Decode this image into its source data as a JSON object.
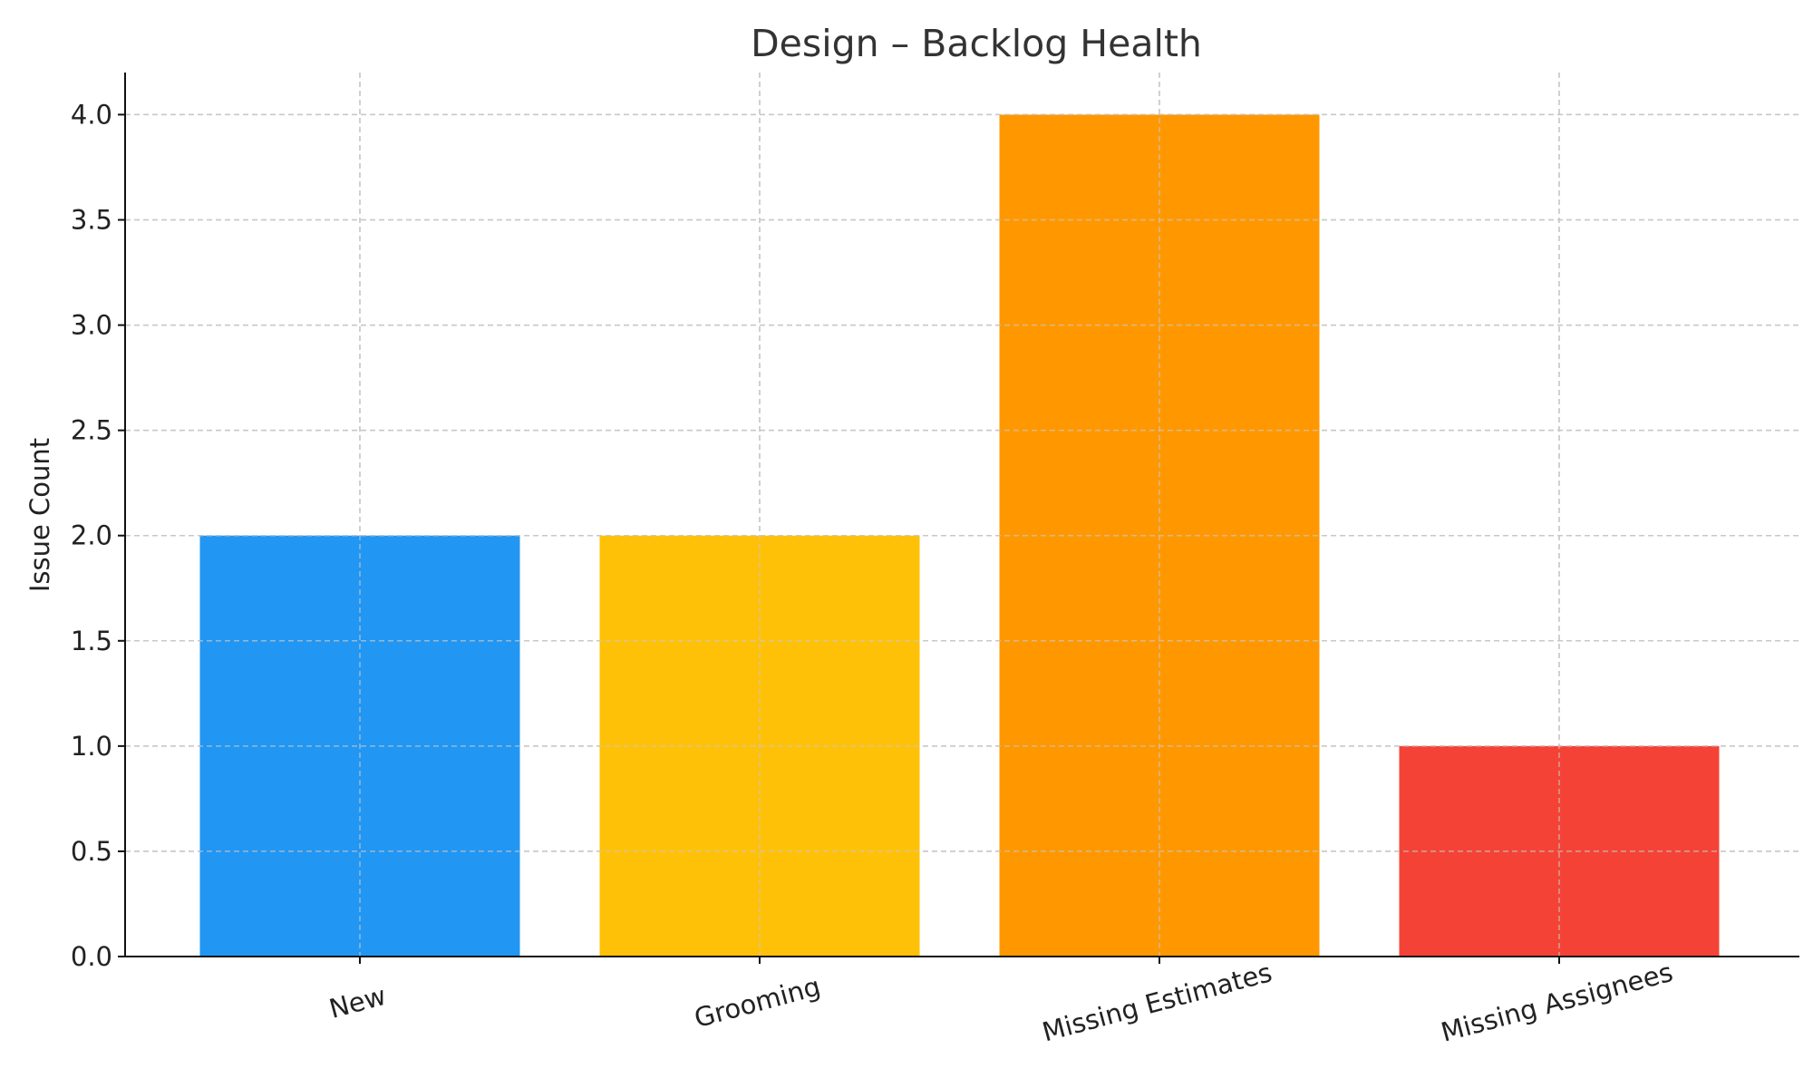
{
  "chart_data": {
    "type": "bar",
    "title": "Design – Backlog Health",
    "xlabel": "",
    "ylabel": "Issue Count",
    "categories": [
      "New",
      "Grooming",
      "Missing Estimates",
      "Missing Assignees"
    ],
    "values": [
      2,
      2,
      4,
      1
    ],
    "colors": [
      "#2196F3",
      "#FFC107",
      "#FF9800",
      "#F44336"
    ],
    "ylim": [
      0,
      4.2
    ],
    "yticks": [
      "0.0",
      "0.5",
      "1.0",
      "1.5",
      "2.0",
      "2.5",
      "3.0",
      "3.5",
      "4.0"
    ],
    "grid": true,
    "legend": "none"
  }
}
